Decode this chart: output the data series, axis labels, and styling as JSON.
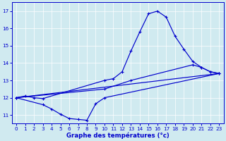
{
  "xlabel": "Graphe des températures (°c)",
  "bg_color": "#d0eaf0",
  "line_color": "#0000cc",
  "ylim": [
    10.5,
    17.5
  ],
  "xlim": [
    -0.5,
    23.5
  ],
  "yticks": [
    11,
    12,
    13,
    14,
    15,
    16,
    17
  ],
  "xticks": [
    0,
    1,
    2,
    3,
    4,
    5,
    6,
    7,
    8,
    9,
    10,
    11,
    12,
    13,
    14,
    15,
    16,
    17,
    18,
    19,
    20,
    21,
    22,
    23
  ],
  "line_top": [
    [
      0,
      12.0
    ],
    [
      1,
      12.1
    ],
    [
      2,
      12.0
    ],
    [
      3,
      11.95
    ],
    [
      10,
      13.0
    ],
    [
      11,
      13.1
    ],
    [
      12,
      13.5
    ],
    [
      13,
      14.7
    ],
    [
      14,
      15.8
    ],
    [
      15,
      16.85
    ],
    [
      16,
      17.0
    ],
    [
      17,
      16.65
    ],
    [
      18,
      15.55
    ],
    [
      19,
      14.8
    ],
    [
      20,
      14.1
    ],
    [
      21,
      13.75
    ],
    [
      22,
      13.5
    ],
    [
      23,
      13.4
    ]
  ],
  "line_bot": [
    [
      0,
      12.0
    ],
    [
      3,
      11.6
    ],
    [
      4,
      11.35
    ],
    [
      5,
      11.05
    ],
    [
      6,
      10.8
    ],
    [
      7,
      10.75
    ],
    [
      8,
      10.7
    ],
    [
      9,
      11.65
    ],
    [
      10,
      12.0
    ],
    [
      23,
      13.4
    ]
  ],
  "line_mid1": [
    [
      0,
      12.0
    ],
    [
      23,
      13.4
    ]
  ],
  "line_mid2": [
    [
      0,
      12.0
    ],
    [
      10,
      12.5
    ],
    [
      13,
      13.0
    ],
    [
      20,
      13.9
    ],
    [
      21,
      13.75
    ],
    [
      22,
      13.5
    ],
    [
      23,
      13.4
    ]
  ]
}
